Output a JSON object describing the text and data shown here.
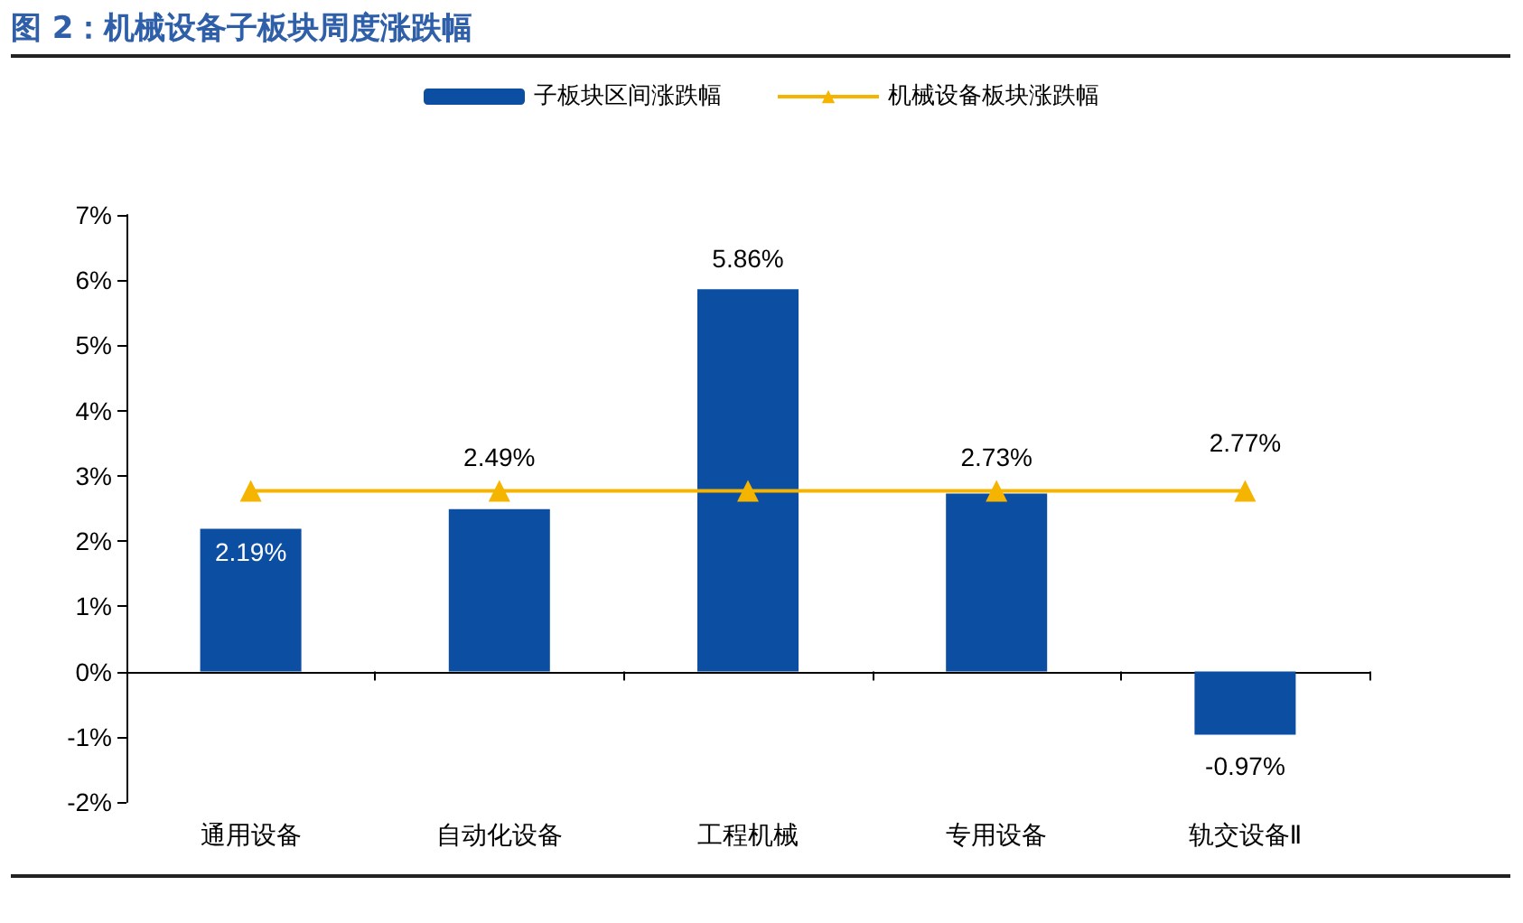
{
  "chart_data": {
    "type": "bar",
    "title": "图 2：机械设备子板块周度涨跌幅",
    "categories": [
      "通用设备",
      "自动化设备",
      "工程机械",
      "专用设备",
      "轨交设备Ⅱ"
    ],
    "series": [
      {
        "name": "子板块区间涨跌幅",
        "color": "#0b4ea2",
        "values": [
          2.19,
          2.49,
          5.86,
          2.73,
          -0.97
        ],
        "value_labels": [
          "2.19%",
          "2.49%",
          "5.86%",
          "2.73%",
          "-0.97%"
        ]
      },
      {
        "name": "机械设备板块涨跌幅",
        "type": "line",
        "color": "#f5b400",
        "marker": "triangle",
        "values": [
          2.77,
          2.77,
          2.77,
          2.77,
          2.77
        ],
        "value_labels": [
          null,
          null,
          null,
          null,
          "2.77%"
        ]
      }
    ],
    "ylim": [
      -2,
      7
    ],
    "yticks": [
      {
        "value": -2,
        "label": "-2%"
      },
      {
        "value": -1,
        "label": "-1%"
      },
      {
        "value": 0,
        "label": "0%"
      },
      {
        "value": 1,
        "label": "1%"
      },
      {
        "value": 2,
        "label": "2%"
      },
      {
        "value": 3,
        "label": "3%"
      },
      {
        "value": 4,
        "label": "4%"
      },
      {
        "value": 5,
        "label": "5%"
      },
      {
        "value": 6,
        "label": "6%"
      },
      {
        "value": 7,
        "label": "7%"
      }
    ],
    "legend": "top"
  }
}
